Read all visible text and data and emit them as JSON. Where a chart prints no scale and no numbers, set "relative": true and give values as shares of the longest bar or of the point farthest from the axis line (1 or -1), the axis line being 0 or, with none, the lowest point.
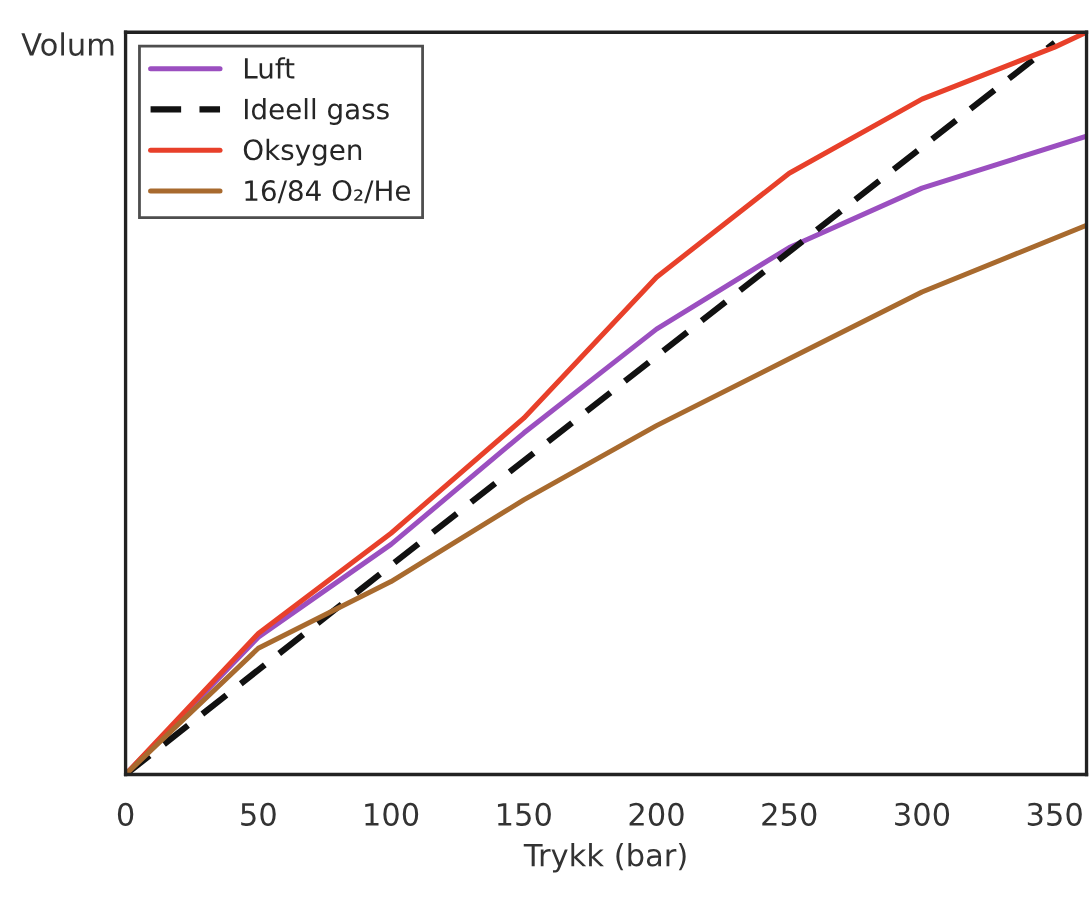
{
  "chart_data": {
    "type": "line",
    "xlabel": "Trykk (bar)",
    "ylabel": "Volum",
    "relative": true,
    "xlim": [
      0,
      362
    ],
    "xticks": [
      0,
      50,
      100,
      150,
      200,
      250,
      300,
      350
    ],
    "legend": "top left",
    "grid": false,
    "marker": "none",
    "series": [
      {
        "name": "Luft",
        "color": "#9b4fc0",
        "line_style": "solid",
        "x": [
          0,
          50,
          100,
          150,
          200,
          250,
          300,
          362
        ],
        "values": [
          0,
          0.185,
          0.31,
          0.46,
          0.6,
          0.71,
          0.79,
          0.86
        ]
      },
      {
        "name": "Ideell gass",
        "color": "#111111",
        "line_style": "dashed",
        "x": [
          0,
          350
        ],
        "values": [
          0,
          0.986
        ]
      },
      {
        "name": "Oksygen",
        "color": "#e8402a",
        "line_style": "solid",
        "x": [
          0,
          50,
          100,
          150,
          200,
          250,
          300,
          350,
          362
        ],
        "values": [
          0,
          0.19,
          0.325,
          0.48,
          0.67,
          0.81,
          0.91,
          0.98,
          1.0
        ]
      },
      {
        "name": "16/84 O₂/He",
        "color": "#a86a2e",
        "line_style": "solid",
        "x": [
          0,
          50,
          100,
          150,
          200,
          250,
          300,
          362
        ],
        "values": [
          0,
          0.17,
          0.26,
          0.37,
          0.47,
          0.56,
          0.65,
          0.74
        ]
      }
    ]
  }
}
